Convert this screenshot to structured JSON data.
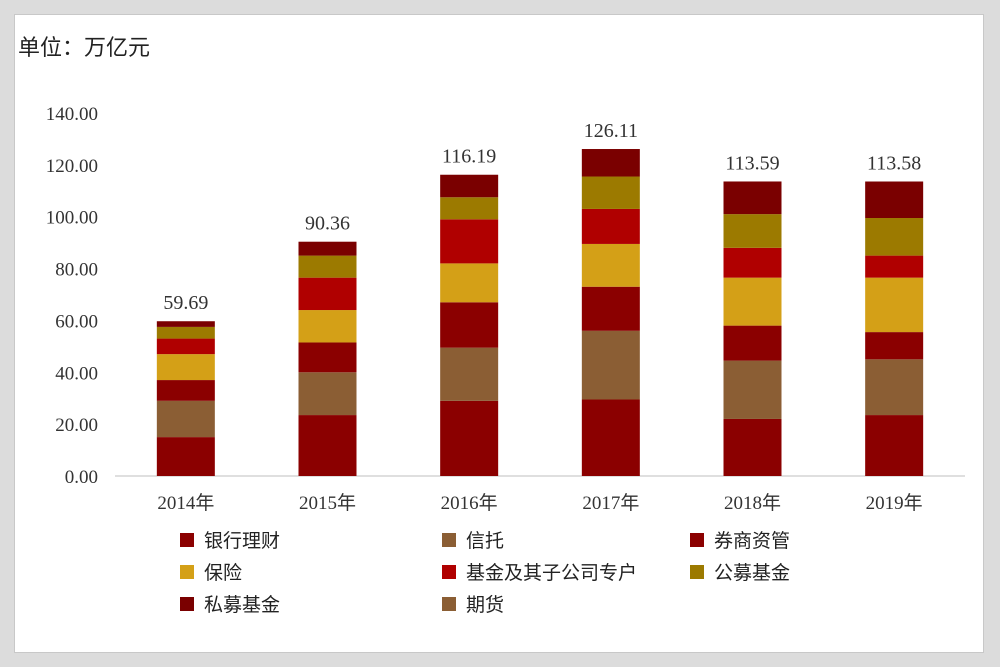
{
  "unit_label": "单位：万亿元",
  "chart_data": {
    "type": "bar",
    "stacked": true,
    "categories": [
      "2014年",
      "2015年",
      "2016年",
      "2017年",
      "2018年",
      "2019年"
    ],
    "totals": [
      "59.69",
      "90.36",
      "116.19",
      "126.11",
      "113.59",
      "113.58"
    ],
    "ylim": [
      0,
      140
    ],
    "yticks": [
      "0.00",
      "20.00",
      "40.00",
      "60.00",
      "80.00",
      "100.00",
      "120.00",
      "140.00"
    ],
    "grid": false,
    "legend_position": "bottom",
    "series": [
      {
        "name": "银行理财",
        "color": "#8b0000",
        "values": [
          15.0,
          23.5,
          29.0,
          29.5,
          22.0,
          23.5
        ]
      },
      {
        "name": "信托",
        "color": "#8b5e34",
        "values": [
          14.0,
          16.5,
          20.5,
          26.5,
          22.5,
          21.5
        ]
      },
      {
        "name": "券商资管",
        "color": "#8b0000",
        "values": [
          8.0,
          11.5,
          17.5,
          17.0,
          13.5,
          10.5
        ]
      },
      {
        "name": "保险",
        "color": "#d4a017",
        "values": [
          10.0,
          12.5,
          15.0,
          16.5,
          18.5,
          21.0
        ]
      },
      {
        "name": "基金及其子公司专户",
        "color": "#b00000",
        "values": [
          6.0,
          12.5,
          17.0,
          13.5,
          11.5,
          8.5
        ]
      },
      {
        "name": "公募基金",
        "color": "#9c7a00",
        "values": [
          4.5,
          8.5,
          8.5,
          12.5,
          13.0,
          14.5
        ]
      },
      {
        "name": "私募基金",
        "color": "#7a0000",
        "values": [
          2.19,
          5.36,
          8.69,
          10.61,
          12.59,
          14.08
        ]
      },
      {
        "name": "期货",
        "color": "#8b5e34",
        "values": [
          0,
          0,
          0,
          0,
          0,
          0
        ]
      }
    ]
  }
}
